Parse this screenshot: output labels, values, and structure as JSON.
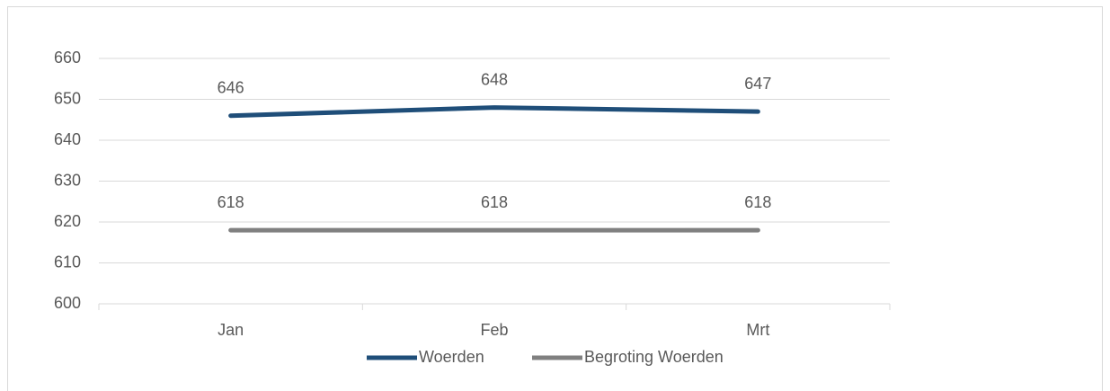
{
  "chart_data": {
    "type": "line",
    "categories": [
      "Jan",
      "Feb",
      "Mrt"
    ],
    "series": [
      {
        "name": "Woerden",
        "color": "#1f4e79",
        "values": [
          646,
          648,
          647
        ]
      },
      {
        "name": "Begroting Woerden",
        "color": "#808080",
        "values": [
          618,
          618,
          618
        ]
      }
    ],
    "ylim": [
      600,
      660
    ],
    "yticks": [
      600,
      610,
      620,
      630,
      640,
      650,
      660
    ],
    "grid": true,
    "legend": "bottom"
  }
}
